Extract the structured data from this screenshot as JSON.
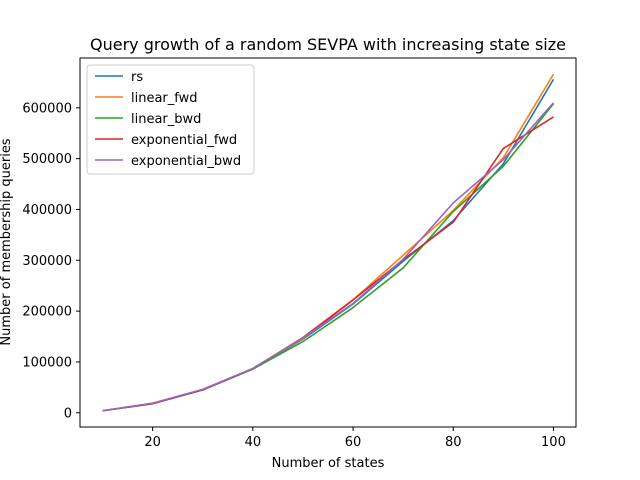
{
  "chart_data": {
    "type": "line",
    "title": "Query growth of a random SEVPA with increasing state size",
    "xlabel": "Number of states",
    "ylabel": "Number of membership queries",
    "xlim": [
      5.5,
      104.5
    ],
    "ylim": [
      -28000,
      698000
    ],
    "xticks": [
      20,
      40,
      60,
      80,
      100
    ],
    "yticks": [
      0,
      100000,
      200000,
      300000,
      400000,
      500000,
      600000
    ],
    "x": [
      10,
      20,
      30,
      40,
      50,
      60,
      70,
      80,
      90,
      100
    ],
    "legend_position": "top-left",
    "grid": false,
    "series": [
      {
        "name": "rs",
        "color": "#1f77b4",
        "values": [
          4000,
          18000,
          45000,
          86000,
          145000,
          214000,
          298000,
          378000,
          490000,
          656000
        ]
      },
      {
        "name": "linear_fwd",
        "color": "#ff7f0e",
        "values": [
          4000,
          18000,
          46000,
          87000,
          146000,
          222000,
          310000,
          398000,
          502000,
          666000
        ]
      },
      {
        "name": "linear_bwd",
        "color": "#2ca02c",
        "values": [
          4000,
          18000,
          45000,
          86000,
          140000,
          207000,
          285000,
          396000,
          485000,
          608000
        ]
      },
      {
        "name": "exponential_fwd",
        "color": "#d62728",
        "values": [
          4000,
          18000,
          45000,
          87000,
          148000,
          222000,
          301000,
          375000,
          520000,
          582000
        ]
      },
      {
        "name": "exponential_bwd",
        "color": "#9467bd",
        "values": [
          4000,
          19000,
          46000,
          87000,
          147000,
          215000,
          302000,
          413000,
          498000,
          610000
        ]
      }
    ]
  }
}
